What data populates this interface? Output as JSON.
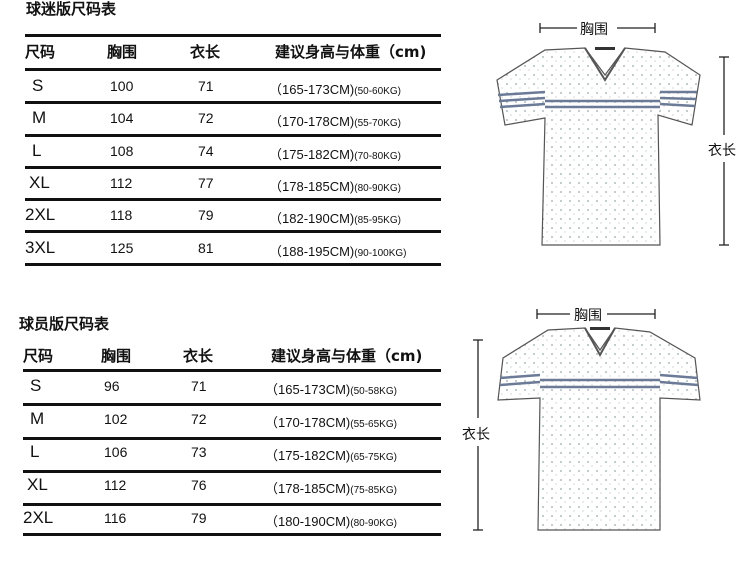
{
  "fan_table": {
    "title": "球迷版尺码表",
    "headers": [
      "尺码",
      "胸围",
      "衣长",
      "建议身高与体重（cm)"
    ],
    "rows": [
      {
        "size": "S",
        "chest": "100",
        "length": "71",
        "height": "（165-173CM)",
        "weight": "(50-60KG)"
      },
      {
        "size": "M",
        "chest": "104",
        "length": "72",
        "height": "（170-178CM)",
        "weight": "(55-70KG)"
      },
      {
        "size": "L",
        "chest": "108",
        "length": "74",
        "height": "（175-182CM)",
        "weight": "(70-80KG)"
      },
      {
        "size": "XL",
        "chest": "112",
        "length": "77",
        "height": "（178-185CM)",
        "weight": "(80-90KG)"
      },
      {
        "size": "2XL",
        "chest": "118",
        "length": "79",
        "height": "（182-190CM)",
        "weight": "(85-95KG)"
      },
      {
        "size": "3XL",
        "chest": "125",
        "length": "81",
        "height": "（188-195CM)",
        "weight": "(90-100KG)"
      }
    ]
  },
  "player_table": {
    "title": "球员版尺码表",
    "headers": [
      "尺码",
      "胸围",
      "衣长",
      "建议身高与体重（cm)"
    ],
    "rows": [
      {
        "size": "S",
        "chest": "96",
        "length": "71",
        "height": "（165-173CM)",
        "weight": "(50-58KG)"
      },
      {
        "size": "M",
        "chest": "102",
        "length": "72",
        "height": "（170-178CM)",
        "weight": "(55-65KG)"
      },
      {
        "size": "L",
        "chest": "106",
        "length": "73",
        "height": "（175-182CM)",
        "weight": "(65-75KG)"
      },
      {
        "size": "XL",
        "chest": "112",
        "length": "76",
        "height": "（178-185CM)",
        "weight": "(75-85KG)"
      },
      {
        "size": "2XL",
        "chest": "116",
        "length": "79",
        "height": "（180-190CM)",
        "weight": "(80-90KG)"
      }
    ]
  },
  "diagram": {
    "chest_label": "胸围",
    "length_label": "衣长",
    "stripe_color": "#6b7a96"
  }
}
